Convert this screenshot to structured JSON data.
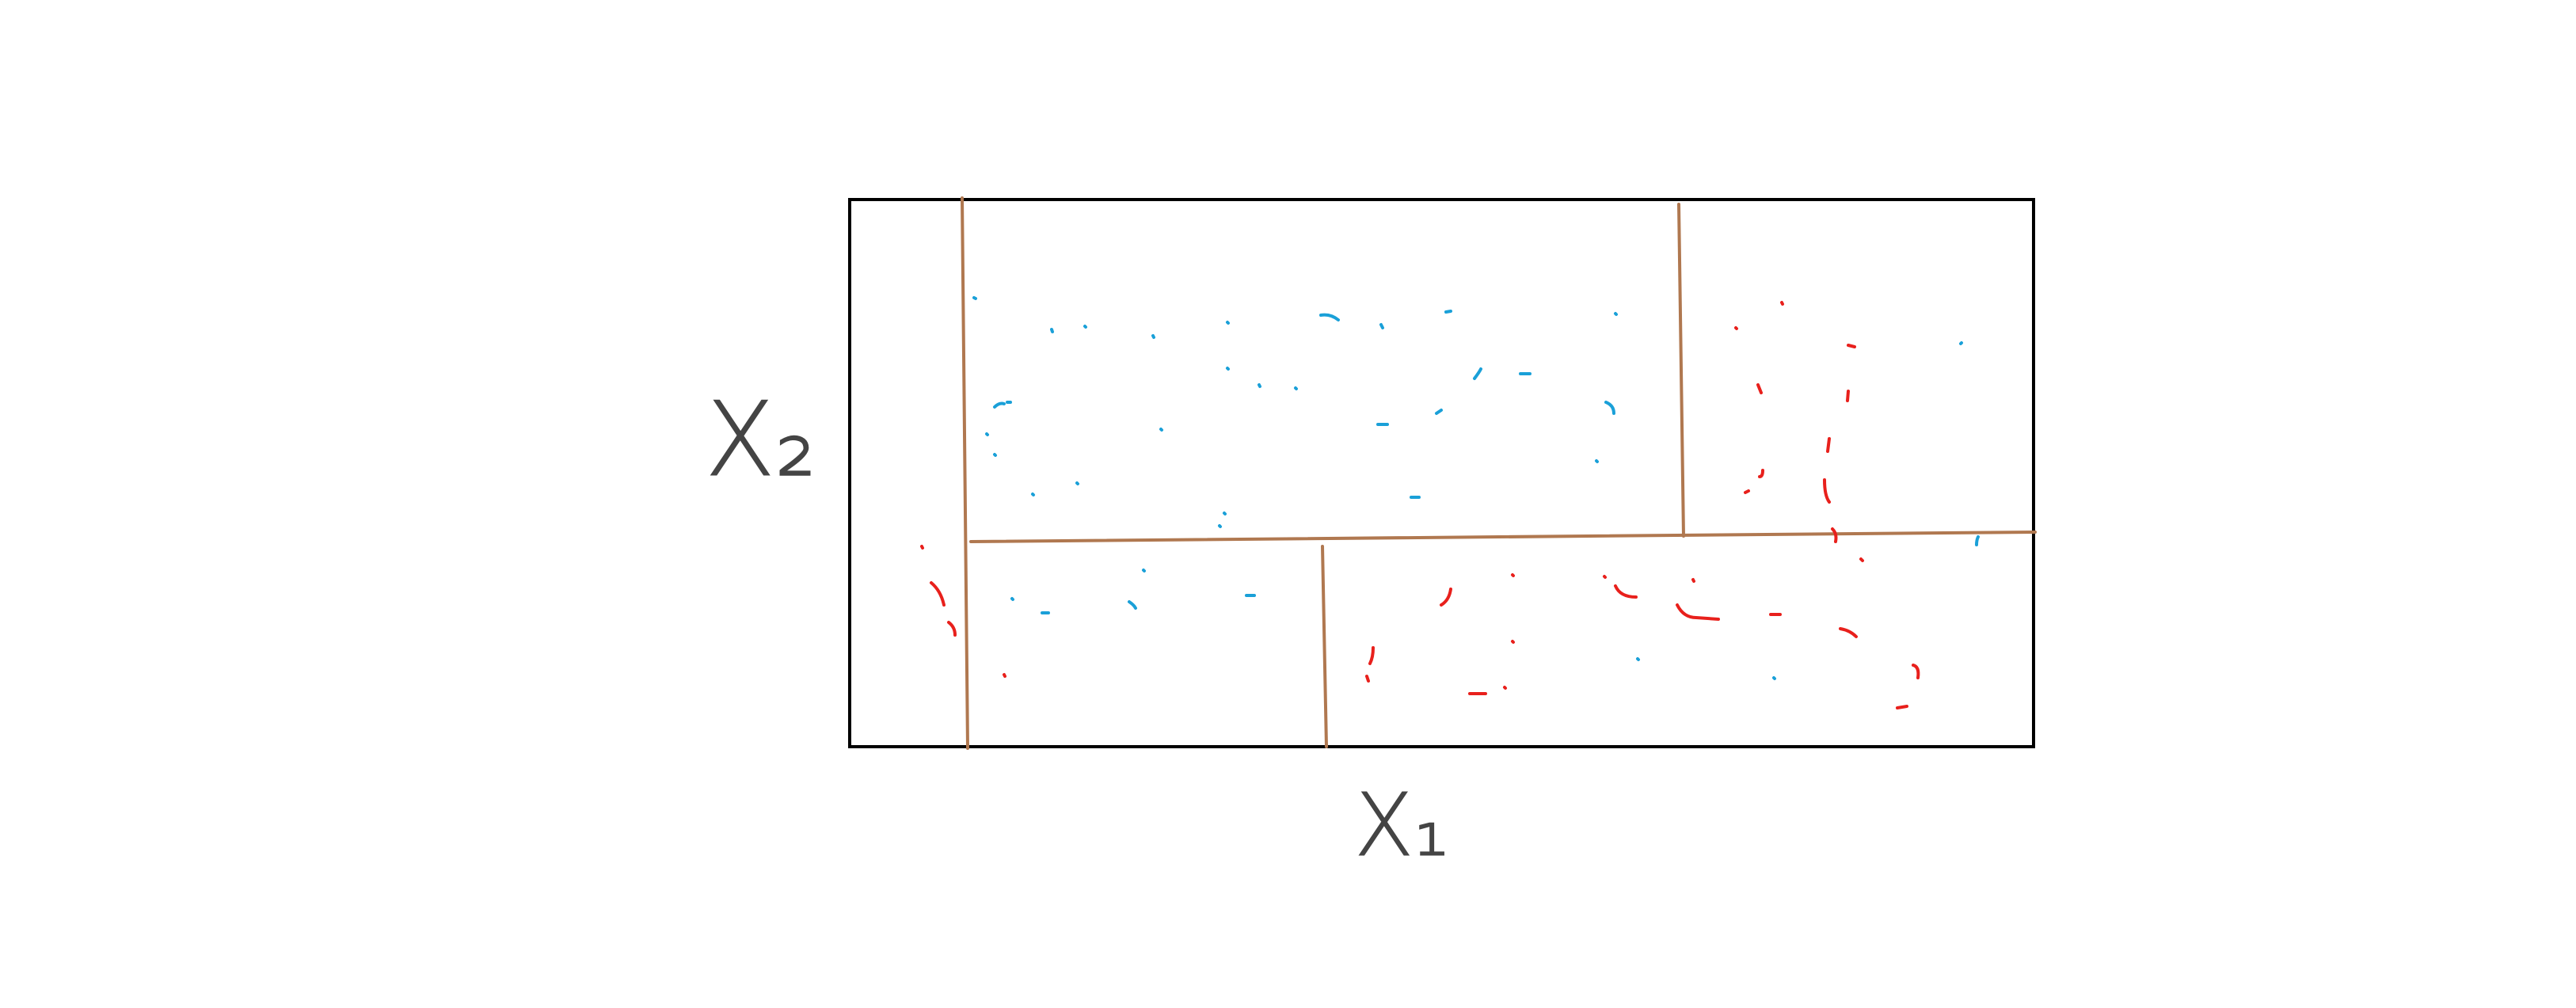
{
  "axes": {
    "x_label": "X₁",
    "y_label": "X₂"
  },
  "colors": {
    "frame": "#000000",
    "split": "#b07850",
    "class_a": "#1aa0d8",
    "class_b": "#e8201c",
    "axis_label": "#444444"
  },
  "regions": [
    {
      "name": "left-strip",
      "class": "class_b"
    },
    {
      "name": "upper-middle",
      "class": "class_a"
    },
    {
      "name": "upper-right",
      "class": "class_b"
    },
    {
      "name": "lower-left",
      "class": "class_a"
    },
    {
      "name": "lower-right",
      "class": "class_b"
    }
  ]
}
